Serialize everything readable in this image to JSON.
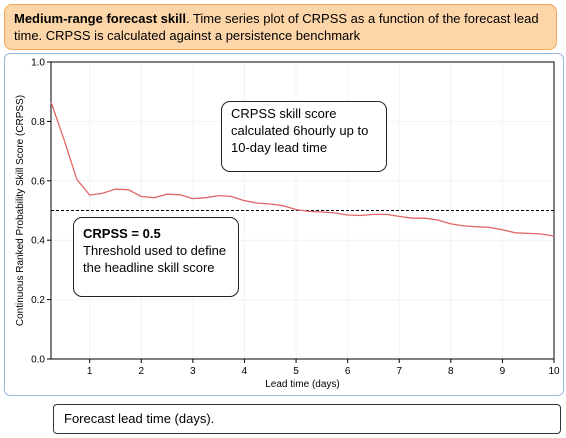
{
  "caption": {
    "bold": "Medium-range forecast skill",
    "rest": ". Time series plot of CRPSS as a function of the forecast lead time. CRPSS is calculated against a persistence benchmark"
  },
  "chart_data": {
    "type": "line",
    "xlabel": "Lead time (days)",
    "ylabel": "Continuous Ranked Probability Skill Score (CRPSS)",
    "xlim": [
      0.25,
      10
    ],
    "ylim": [
      0,
      1
    ],
    "xticks": [
      "1",
      "2",
      "3",
      "4",
      "5",
      "6",
      "7",
      "8",
      "9",
      "10"
    ],
    "yticks": [
      "0.0",
      "0.2",
      "0.4",
      "0.6",
      "0.8",
      "1.0"
    ],
    "line_color": "#e06666",
    "threshold": 0.5,
    "series": [
      {
        "x": [
          0.25,
          0.5,
          0.75,
          1.0,
          1.25,
          1.5,
          1.75,
          2.0,
          2.25,
          2.5,
          2.75,
          3.0,
          3.25,
          3.5,
          3.75,
          4.0,
          4.25,
          4.5,
          4.75,
          5.0,
          5.25,
          5.5,
          5.75,
          6.0,
          6.25,
          6.5,
          6.75,
          7.0,
          7.25,
          7.5,
          7.75,
          8.0,
          8.25,
          8.5,
          8.75,
          9.0,
          9.25,
          9.5,
          9.75,
          10.0
        ],
        "y": [
          0.865,
          0.74,
          0.605,
          0.552,
          0.558,
          0.572,
          0.57,
          0.547,
          0.543,
          0.555,
          0.553,
          0.54,
          0.543,
          0.55,
          0.547,
          0.533,
          0.525,
          0.522,
          0.516,
          0.503,
          0.497,
          0.495,
          0.492,
          0.485,
          0.483,
          0.487,
          0.487,
          0.48,
          0.474,
          0.474,
          0.468,
          0.455,
          0.448,
          0.445,
          0.443,
          0.435,
          0.425,
          0.423,
          0.421,
          0.414
        ]
      }
    ]
  },
  "annotations": {
    "skill_note": "CRPSS skill score calculated 6hourly up to 10-day lead time",
    "threshold_title": "CRPSS = 0.5",
    "threshold_note": "Threshold used to define the headline skill score"
  },
  "footer": "Forecast lead time (days)."
}
